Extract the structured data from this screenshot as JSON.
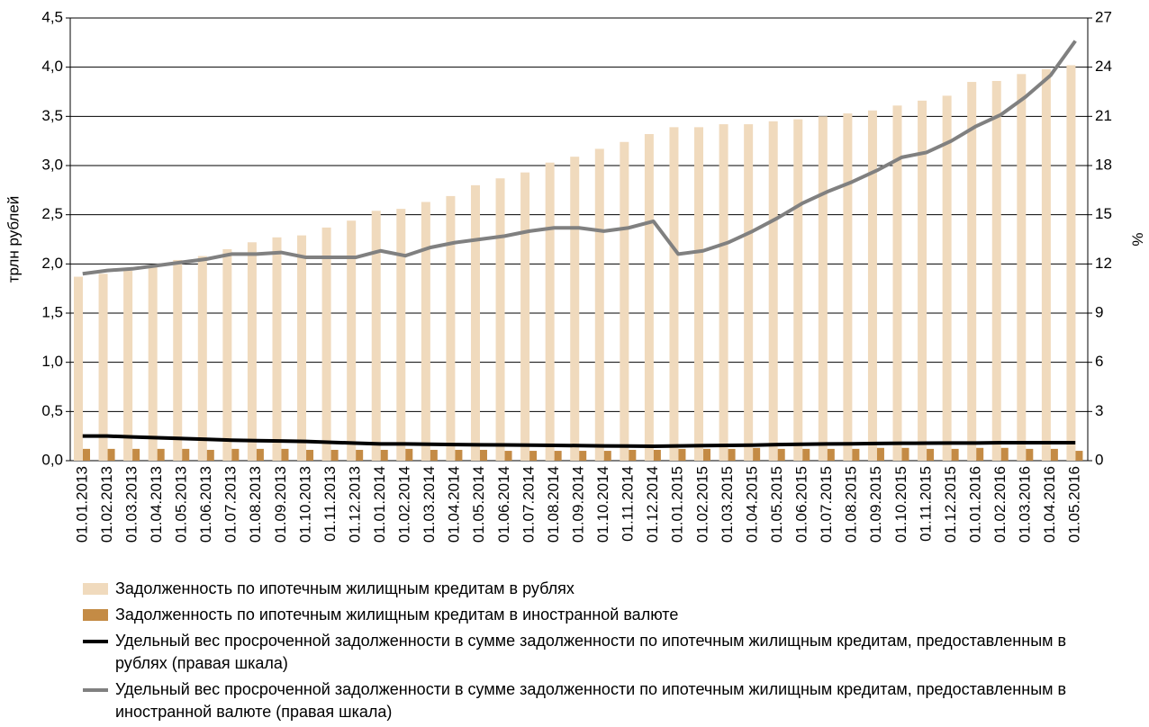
{
  "chart_data": {
    "type": "bar",
    "ylabel": "трлн рублей",
    "y2label": "%",
    "categories": [
      "01.01.2013",
      "01.02.2013",
      "01.03.2013",
      "01.04.2013",
      "01.05.2013",
      "01.06.2013",
      "01.07.2013",
      "01.08.2013",
      "01.09.2013",
      "01.10.2013",
      "01.11.2013",
      "01.12.2013",
      "01.01.2014",
      "01.02.2014",
      "01.03.2014",
      "01.04.2014",
      "01.05.2014",
      "01.06.2014",
      "01.07.2014",
      "01.08.2014",
      "01.09.2014",
      "01.10.2014",
      "01.11.2014",
      "01.12.2014",
      "01.01.2015",
      "01.02.2015",
      "01.03.2015",
      "01.04.2015",
      "01.05.2015",
      "01.06.2015",
      "01.07.2015",
      "01.08.2015",
      "01.09.2015",
      "01.10.2015",
      "01.11.2015",
      "01.12.2015",
      "01.01.2016",
      "01.02.2016",
      "01.03.2016",
      "01.04.2016",
      "01.05.2016"
    ],
    "series": [
      {
        "name": "Задолженность по ипотечным жилищным кредитам в рублях",
        "type": "bar",
        "color": "#f0dabd",
        "values": [
          1.87,
          1.9,
          1.93,
          1.97,
          2.04,
          2.08,
          2.15,
          2.22,
          2.27,
          2.29,
          2.37,
          2.44,
          2.54,
          2.56,
          2.63,
          2.69,
          2.8,
          2.87,
          2.93,
          3.03,
          3.09,
          3.17,
          3.24,
          3.32,
          3.39,
          3.39,
          3.42,
          3.42,
          3.45,
          3.47,
          3.5,
          3.53,
          3.56,
          3.61,
          3.66,
          3.71,
          3.85,
          3.86,
          3.93,
          3.98,
          4.02
        ]
      },
      {
        "name": "Задолженность по ипотечным жилищным кредитам в иностранной валюте",
        "type": "bar",
        "color": "#c48b45",
        "values": [
          0.12,
          0.12,
          0.12,
          0.12,
          0.12,
          0.11,
          0.12,
          0.12,
          0.12,
          0.11,
          0.11,
          0.11,
          0.11,
          0.12,
          0.11,
          0.11,
          0.11,
          0.1,
          0.1,
          0.1,
          0.1,
          0.1,
          0.11,
          0.11,
          0.12,
          0.12,
          0.12,
          0.13,
          0.12,
          0.12,
          0.12,
          0.12,
          0.13,
          0.13,
          0.12,
          0.12,
          0.13,
          0.13,
          0.12,
          0.12,
          0.1
        ]
      },
      {
        "name": "Удельный вес просроченной задолженности в сумме задолженности по ипотечным жилищным кредитам, предоставленным в рублях (правая шкала)",
        "type": "line",
        "axis": "y2",
        "color": "#000000",
        "values": [
          1.5,
          1.5,
          1.45,
          1.4,
          1.35,
          1.3,
          1.25,
          1.22,
          1.2,
          1.17,
          1.12,
          1.07,
          1.02,
          1.02,
          1.0,
          0.98,
          0.97,
          0.96,
          0.95,
          0.93,
          0.92,
          0.9,
          0.89,
          0.88,
          0.9,
          0.92,
          0.93,
          0.95,
          0.98,
          1.0,
          1.02,
          1.03,
          1.05,
          1.06,
          1.07,
          1.08,
          1.08,
          1.1,
          1.1,
          1.1,
          1.1
        ]
      },
      {
        "name": "Удельный вес просроченной задолженности в сумме задолженности по ипотечным жилищным кредитам, предоставленным в иностранной валюте (правая шкала)",
        "type": "line",
        "axis": "y2",
        "color": "#808080",
        "values": [
          11.4,
          11.6,
          11.7,
          11.9,
          12.1,
          12.3,
          12.6,
          12.6,
          12.7,
          12.4,
          12.4,
          12.4,
          12.8,
          12.5,
          13.0,
          13.3,
          13.5,
          13.7,
          14.0,
          14.2,
          14.2,
          14.0,
          14.2,
          14.6,
          12.6,
          12.8,
          13.3,
          14.0,
          14.8,
          15.7,
          16.4,
          17.0,
          17.7,
          18.5,
          18.8,
          19.5,
          20.4,
          21.1,
          22.2,
          23.5,
          25.6
        ]
      }
    ],
    "ylim": [
      0,
      4.5
    ],
    "yticks": [
      {
        "value": 0,
        "label": "0,0"
      },
      {
        "value": 0.5,
        "label": "0,5"
      },
      {
        "value": 1,
        "label": "1,0"
      },
      {
        "value": 1.5,
        "label": "1,5"
      },
      {
        "value": 2,
        "label": "2,0"
      },
      {
        "value": 2.5,
        "label": "2,5"
      },
      {
        "value": 3,
        "label": "3,0"
      },
      {
        "value": 3.5,
        "label": "3,5"
      },
      {
        "value": 4,
        "label": "4,0"
      },
      {
        "value": 4.5,
        "label": "4,5"
      }
    ],
    "y2lim": [
      0,
      27
    ],
    "y2ticks": [
      0,
      3,
      6,
      9,
      12,
      15,
      18,
      21,
      24,
      27
    ],
    "grid": true
  }
}
